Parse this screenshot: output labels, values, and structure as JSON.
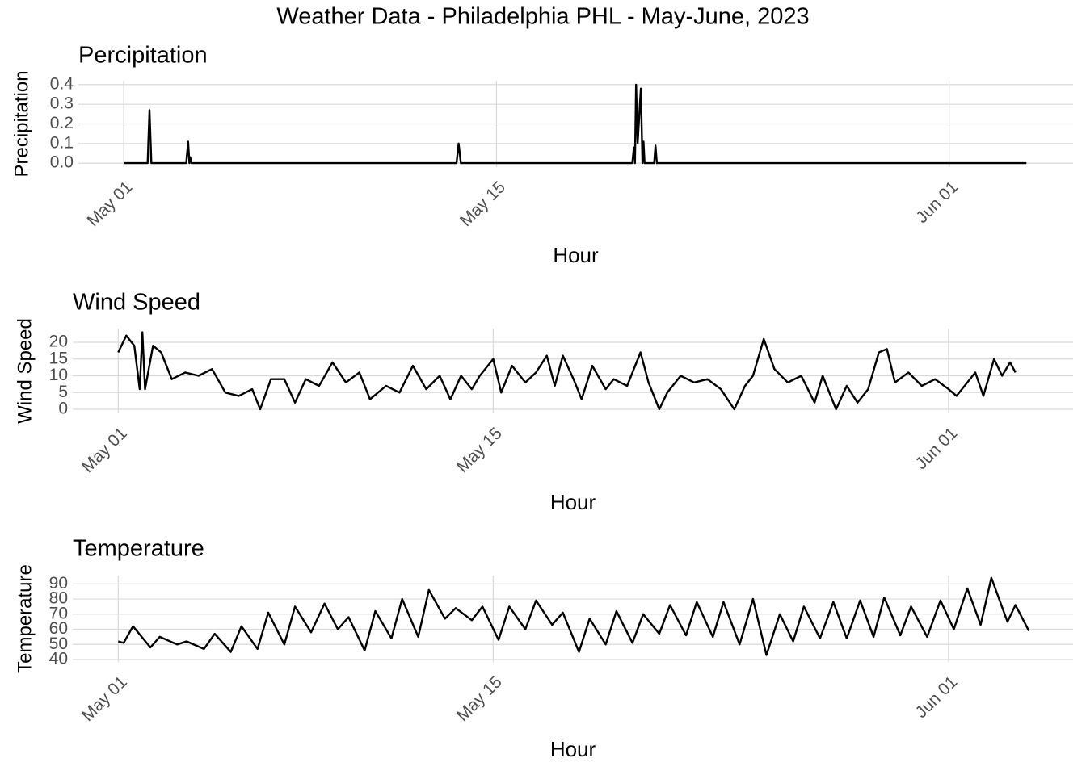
{
  "title": "Weather Data - Philadelphia PHL - May-June, 2023",
  "chart_data": [
    {
      "type": "line",
      "title": "Percipitation",
      "x_label": "Hour",
      "y_label": "Precipitation",
      "color": "#000000",
      "grid": true,
      "x": [
        0,
        0.9,
        0.97,
        1.04,
        2.35,
        2.42,
        2.47,
        2.5,
        2.55,
        12.5,
        12.58,
        12.66,
        19.1,
        19.16,
        19.2,
        19.24,
        19.3,
        19.42,
        19.48,
        19.52,
        19.56,
        19.6,
        19.92,
        19.97,
        20.02,
        33.9
      ],
      "values": [
        0,
        0,
        0.27,
        0,
        0,
        0.11,
        0,
        0.03,
        0,
        0,
        0.1,
        0,
        0,
        0.08,
        0,
        0.4,
        0.1,
        0.38,
        0,
        0.11,
        0,
        0,
        0,
        0.09,
        0,
        0
      ],
      "xlim": [
        -1.7,
        35.65
      ],
      "ylim": [
        -0.02,
        0.42
      ],
      "xticks": [
        {
          "value": 0,
          "label": "May 01"
        },
        {
          "value": 14,
          "label": "May 15"
        },
        {
          "value": 31,
          "label": "Jun 01"
        }
      ],
      "yticks": [
        {
          "value": 0,
          "label": "0.0"
        },
        0.1,
        0.2,
        0.3,
        0.4
      ]
    },
    {
      "type": "line",
      "title": "Wind Speed",
      "x_label": "Hour",
      "y_label": "Wind Speed",
      "color": "#000000",
      "grid": true,
      "x": [
        0,
        0.3,
        0.6,
        0.8,
        0.9,
        1.0,
        1.3,
        1.6,
        2,
        2.5,
        3,
        3.5,
        4,
        4.5,
        5,
        5.3,
        5.7,
        6.2,
        6.6,
        7,
        7.5,
        8,
        8.5,
        9,
        9.4,
        10,
        10.5,
        11,
        11.5,
        12,
        12.4,
        12.8,
        13.2,
        13.5,
        14,
        14.3,
        14.7,
        15.2,
        15.6,
        16,
        16.3,
        16.6,
        17,
        17.3,
        17.7,
        18.2,
        18.5,
        19,
        19.5,
        19.8,
        20.2,
        20.5,
        21,
        21.5,
        22,
        22.5,
        23,
        23.4,
        23.7,
        24.1,
        24.5,
        25,
        25.5,
        26,
        26.3,
        26.8,
        27.2,
        27.6,
        28,
        28.4,
        28.7,
        29,
        29.5,
        30,
        30.5,
        31,
        31.3,
        31.6,
        32,
        32.3,
        32.7,
        33,
        33.3,
        33.5
      ],
      "values": [
        17,
        22,
        19,
        6,
        23,
        6,
        19,
        17,
        9,
        11,
        10,
        12,
        5,
        4,
        6,
        0,
        9,
        9,
        2,
        9,
        7,
        14,
        8,
        11,
        3,
        7,
        5,
        13,
        6,
        10,
        3,
        10,
        6,
        10,
        15,
        5,
        13,
        8,
        11,
        16,
        7,
        16,
        9,
        3,
        13,
        6,
        9,
        7,
        17,
        8,
        0,
        5,
        10,
        8,
        9,
        6,
        0,
        7,
        10,
        21,
        12,
        8,
        10,
        2,
        10,
        0,
        7,
        2,
        6,
        17,
        18,
        8,
        11,
        7,
        9,
        6,
        4,
        7,
        11,
        4,
        15,
        10,
        14,
        11
      ],
      "xlim": [
        -1.7,
        35.65
      ],
      "ylim": [
        -1.2,
        24.1
      ],
      "xticks": [
        {
          "value": 0,
          "label": "May 01"
        },
        {
          "value": 14,
          "label": "May 15"
        },
        {
          "value": 31,
          "label": "Jun 01"
        }
      ],
      "yticks": [
        0,
        5,
        10,
        15,
        20
      ]
    },
    {
      "type": "line",
      "title": "Temperature",
      "x_label": "Hour",
      "y_label": "Temperature",
      "color": "#000000",
      "grid": true,
      "x": [
        0,
        0.2,
        0.55,
        1.2,
        1.55,
        2.2,
        2.55,
        3.2,
        3.6,
        4.2,
        4.6,
        5.2,
        5.6,
        6.2,
        6.6,
        7.2,
        7.7,
        8.2,
        8.6,
        9.2,
        9.6,
        10.2,
        10.6,
        11.2,
        11.6,
        12.2,
        12.6,
        13.2,
        13.6,
        14.2,
        14.6,
        15.2,
        15.6,
        16.2,
        16.6,
        17.2,
        17.6,
        18.2,
        18.6,
        19.2,
        19.6,
        20.2,
        20.6,
        21.2,
        21.6,
        22.2,
        22.6,
        23.2,
        23.7,
        24.2,
        24.7,
        25.2,
        25.6,
        26.2,
        26.7,
        27.2,
        27.7,
        28.2,
        28.6,
        29.2,
        29.6,
        30.2,
        30.7,
        31.2,
        31.7,
        32.2,
        32.6,
        33.2,
        33.5,
        34.0
      ],
      "values": [
        52,
        51,
        62,
        48,
        55,
        50,
        52,
        47,
        57,
        45,
        62,
        47,
        71,
        50,
        75,
        58,
        77,
        60,
        68,
        46,
        72,
        54,
        80,
        55,
        86,
        67,
        74,
        66,
        75,
        53,
        75,
        60,
        79,
        63,
        71,
        45,
        67,
        50,
        72,
        51,
        70,
        57,
        76,
        56,
        78,
        55,
        78,
        50,
        80,
        43,
        70,
        52,
        75,
        54,
        78,
        54,
        79,
        55,
        81,
        56,
        75,
        55,
        79,
        60,
        87,
        63,
        94,
        65,
        76,
        59
      ],
      "xlim": [
        -1.7,
        35.65
      ],
      "ylim": [
        38.4,
        95.5
      ],
      "xticks": [
        {
          "value": 0,
          "label": "May 01"
        },
        {
          "value": 14,
          "label": "May 15"
        },
        {
          "value": 31,
          "label": "Jun 01"
        }
      ],
      "yticks": [
        40,
        50,
        60,
        70,
        80,
        90
      ]
    }
  ]
}
